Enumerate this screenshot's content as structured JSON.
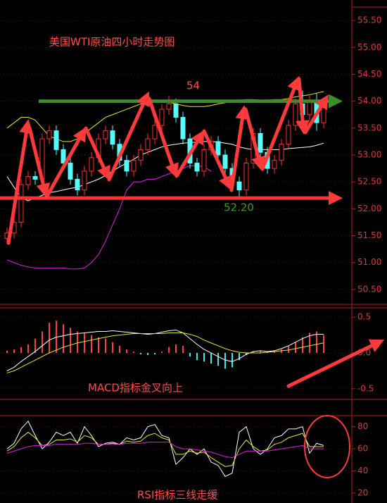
{
  "chart_data": [
    {
      "type": "candlestick",
      "title": "美国WTI原油四小时走势图",
      "open": [
        51.45,
        51.55,
        51.75,
        52.45,
        52.6,
        52.55,
        53.3,
        53.45,
        53.1,
        52.85,
        52.55,
        52.35,
        52.7,
        52.95,
        53.3,
        53.45,
        53.2,
        52.9,
        52.7,
        52.9,
        53.1,
        53.3,
        53.55,
        53.85,
        53.95,
        53.7,
        53.3,
        52.85,
        52.7,
        53.1,
        53.25,
        53.0,
        52.75,
        52.5,
        52.35,
        52.85,
        53.4,
        53.05,
        52.75,
        52.9,
        53.2,
        53.55,
        53.95,
        53.75,
        54.0,
        53.6
      ],
      "high": [
        51.65,
        51.85,
        52.55,
        52.7,
        52.7,
        53.4,
        53.55,
        53.55,
        53.2,
        52.95,
        52.65,
        52.8,
        53.05,
        53.4,
        53.55,
        53.55,
        53.3,
        53.0,
        53.0,
        53.2,
        53.4,
        53.65,
        53.95,
        54.1,
        54.05,
        53.8,
        53.4,
        52.95,
        53.2,
        53.35,
        53.35,
        53.1,
        52.85,
        52.6,
        52.95,
        53.5,
        53.5,
        53.15,
        53.0,
        53.3,
        53.65,
        54.05,
        54.2,
        54.1,
        54.15,
        54.05
      ],
      "low": [
        51.35,
        51.45,
        51.65,
        52.35,
        52.45,
        52.45,
        53.2,
        53.0,
        52.75,
        52.45,
        52.25,
        52.25,
        52.6,
        52.85,
        53.2,
        53.1,
        52.8,
        52.6,
        52.6,
        52.8,
        53.0,
        53.2,
        53.45,
        53.75,
        53.6,
        53.2,
        52.75,
        52.6,
        52.6,
        53.0,
        52.9,
        52.65,
        52.4,
        52.2,
        52.25,
        52.75,
        52.95,
        52.65,
        52.65,
        52.8,
        53.1,
        53.45,
        53.65,
        53.65,
        53.45,
        53.5
      ],
      "close": [
        51.55,
        51.75,
        52.45,
        52.6,
        52.55,
        53.3,
        53.45,
        53.1,
        52.85,
        52.55,
        52.35,
        52.7,
        52.95,
        53.3,
        53.45,
        53.2,
        52.9,
        52.7,
        52.9,
        53.1,
        53.3,
        53.55,
        53.85,
        53.95,
        53.7,
        53.3,
        52.85,
        52.7,
        53.1,
        53.25,
        53.0,
        52.75,
        52.5,
        52.35,
        52.85,
        53.4,
        53.05,
        52.75,
        52.9,
        53.2,
        53.55,
        53.95,
        53.75,
        54.0,
        53.6,
        53.95
      ],
      "up_color": "#ff3030",
      "down_color": "#54fcfc",
      "series": [
        {
          "color": "#e8e830",
          "values": [
            53.5,
            53.6,
            53.7,
            53.7,
            53.65,
            53.5,
            53.35,
            53.3,
            53.25,
            53.25,
            53.3,
            53.4,
            53.5,
            53.6,
            53.7,
            53.75,
            53.8,
            53.85,
            53.9,
            53.95,
            53.95,
            54.0,
            54.0,
            53.98,
            53.95,
            53.92,
            53.9,
            53.9,
            53.9,
            53.92,
            53.95,
            53.97,
            54.0,
            54.02,
            54.03,
            54.03,
            54.02,
            54.02,
            54.03,
            54.03,
            54.05,
            54.08,
            54.1,
            54.12,
            54.15,
            54.18
          ]
        },
        {
          "color": "#ffffff",
          "values": [
            52.6,
            52.4,
            52.2,
            52.15,
            52.2,
            52.25,
            52.3,
            52.32,
            52.35,
            52.38,
            52.4,
            52.45,
            52.5,
            52.55,
            52.62,
            52.7,
            52.78,
            52.85,
            52.92,
            53.0,
            53.05,
            53.1,
            53.15,
            53.18,
            53.2,
            53.22,
            53.23,
            53.24,
            53.25,
            53.25,
            53.24,
            53.22,
            53.2,
            53.15,
            53.12,
            53.1,
            53.1,
            53.1,
            53.1,
            53.1,
            53.12,
            53.13,
            53.14,
            53.15,
            53.18,
            53.22
          ]
        },
        {
          "color": "#e020e0",
          "values": [
            51.05,
            51.0,
            50.95,
            50.92,
            50.9,
            50.9,
            50.9,
            50.9,
            50.9,
            50.88,
            50.88,
            50.9,
            51.0,
            51.15,
            51.4,
            51.7,
            52.0,
            52.35,
            52.5,
            52.5,
            52.55,
            52.55,
            52.6,
            52.65,
            52.7,
            52.75,
            52.8,
            52.8,
            52.78,
            52.7,
            null,
            null,
            null,
            null,
            null,
            null,
            null,
            null,
            null,
            null,
            null,
            null,
            null,
            null,
            null,
            null
          ]
        }
      ],
      "annotations": [
        {
          "value": 54,
          "label": "54",
          "color": "#3c8c28"
        },
        {
          "value": 52.2,
          "label": "52.20",
          "color": "#ff3030"
        }
      ],
      "ylim": [
        50.25,
        55.75
      ],
      "yticks": [
        {
          "value": 50.5,
          "label": "50.50"
        },
        {
          "value": 51.0,
          "label": "51.00"
        },
        {
          "value": 51.5,
          "label": "51.50"
        },
        {
          "value": 52.0,
          "label": "52.00"
        },
        {
          "value": 52.5,
          "label": "52.50"
        },
        {
          "value": 53.0,
          "label": "53.00"
        },
        {
          "value": 53.5,
          "label": "53.50"
        },
        {
          "value": 54.0,
          "label": "54.00"
        },
        {
          "value": 54.5,
          "label": "54.50"
        },
        {
          "value": 55.0,
          "label": "55.00"
        },
        {
          "value": 55.5,
          "label": "55.50"
        }
      ],
      "grid": true
    },
    {
      "type": "macd",
      "title": "MACD指标金叉向上",
      "values": [
        0.03,
        0.05,
        0.08,
        0.12,
        0.2,
        0.3,
        0.42,
        0.45,
        0.4,
        0.35,
        0.3,
        0.28,
        0.25,
        0.22,
        0.2,
        0.15,
        0.1,
        0.05,
        0.02,
        -0.02,
        -0.03,
        -0.02,
        0.02,
        0.08,
        0.12,
        0.1,
        -0.05,
        -0.1,
        -0.12,
        -0.15,
        -0.18,
        -0.22,
        -0.2,
        -0.1,
        -0.03,
        0.02,
        0.03,
        0.01,
        0.02,
        0.05,
        0.1,
        0.15,
        0.22,
        0.28,
        0.3,
        0.25
      ],
      "up_color": "#ff4040",
      "down_color": "#40e8e8",
      "series": [
        {
          "color": "#ffffff",
          "values": [
            -0.25,
            -0.2,
            -0.12,
            -0.05,
            0.02,
            0.1,
            0.18,
            0.22,
            0.24,
            0.26,
            0.27,
            0.28,
            0.29,
            0.3,
            0.3,
            0.31,
            0.3,
            0.29,
            0.28,
            0.27,
            0.26,
            0.27,
            0.29,
            0.31,
            0.32,
            0.28,
            0.2,
            0.12,
            0.05,
            0,
            -0.05,
            -0.1,
            -0.12,
            -0.08,
            -0.02,
            0.02,
            0.03,
            0.02,
            0.03,
            0.06,
            0.1,
            0.15,
            0.2,
            0.24,
            0.26,
            0.26
          ]
        },
        {
          "color": "#e8e830",
          "values": [
            -0.28,
            -0.25,
            -0.2,
            -0.15,
            -0.1,
            -0.05,
            0,
            0.04,
            0.08,
            0.11,
            0.14,
            0.16,
            0.18,
            0.2,
            0.22,
            0.24,
            0.25,
            0.26,
            0.27,
            0.27,
            0.27,
            0.27,
            0.27,
            0.28,
            0.28,
            0.28,
            0.26,
            0.23,
            0.18,
            0.14,
            0.1,
            0.06,
            0.03,
            0.01,
            0,
            0,
            0,
            0.01,
            0.02,
            0.03,
            0.04,
            0.06,
            0.08,
            0.1,
            0.12,
            0.14
          ]
        }
      ],
      "ylim": [
        -0.63,
        0.6
      ],
      "yticks": [
        0.5,
        {
          "value": 0.0,
          "label": "0.0"
        },
        -0.5
      ],
      "grid": true
    },
    {
      "type": "line",
      "title": "RSI指标三线走缓",
      "series": [
        {
          "color": "#ffffff",
          "values": [
            60,
            65,
            78,
            85,
            72,
            60,
            66,
            75,
            72,
            75,
            65,
            80,
            72,
            62,
            65,
            66,
            64,
            70,
            68,
            70,
            80,
            82,
            72,
            70,
            46,
            52,
            60,
            55,
            60,
            48,
            45,
            35,
            38,
            75,
            80,
            60,
            55,
            60,
            70,
            72,
            78,
            78,
            80,
            56,
            65,
            63
          ]
        },
        {
          "color": "#e8e830",
          "values": [
            58,
            62,
            70,
            75,
            70,
            63,
            64,
            68,
            68,
            69,
            66,
            72,
            70,
            64,
            64,
            65,
            64,
            67,
            66,
            67,
            72,
            74,
            70,
            68,
            55,
            55,
            58,
            56,
            57,
            52,
            48,
            44,
            45,
            60,
            68,
            62,
            58,
            59,
            64,
            66,
            70,
            72,
            74,
            62,
            62,
            62
          ]
        },
        {
          "color": "#e020e0",
          "values": [
            56,
            58,
            60,
            62,
            63,
            63,
            63,
            64,
            64,
            64,
            64,
            65,
            65,
            64,
            64,
            64,
            64,
            65,
            65,
            65,
            66,
            66,
            66,
            66,
            62,
            60,
            60,
            59,
            58,
            57,
            55,
            53,
            52,
            55,
            58,
            58,
            58,
            58,
            59,
            60,
            61,
            62,
            63,
            60,
            60,
            60
          ]
        }
      ],
      "ylim": [
        11,
        90
      ],
      "yticks": [
        20,
        40,
        60,
        80
      ],
      "grid": true
    }
  ]
}
